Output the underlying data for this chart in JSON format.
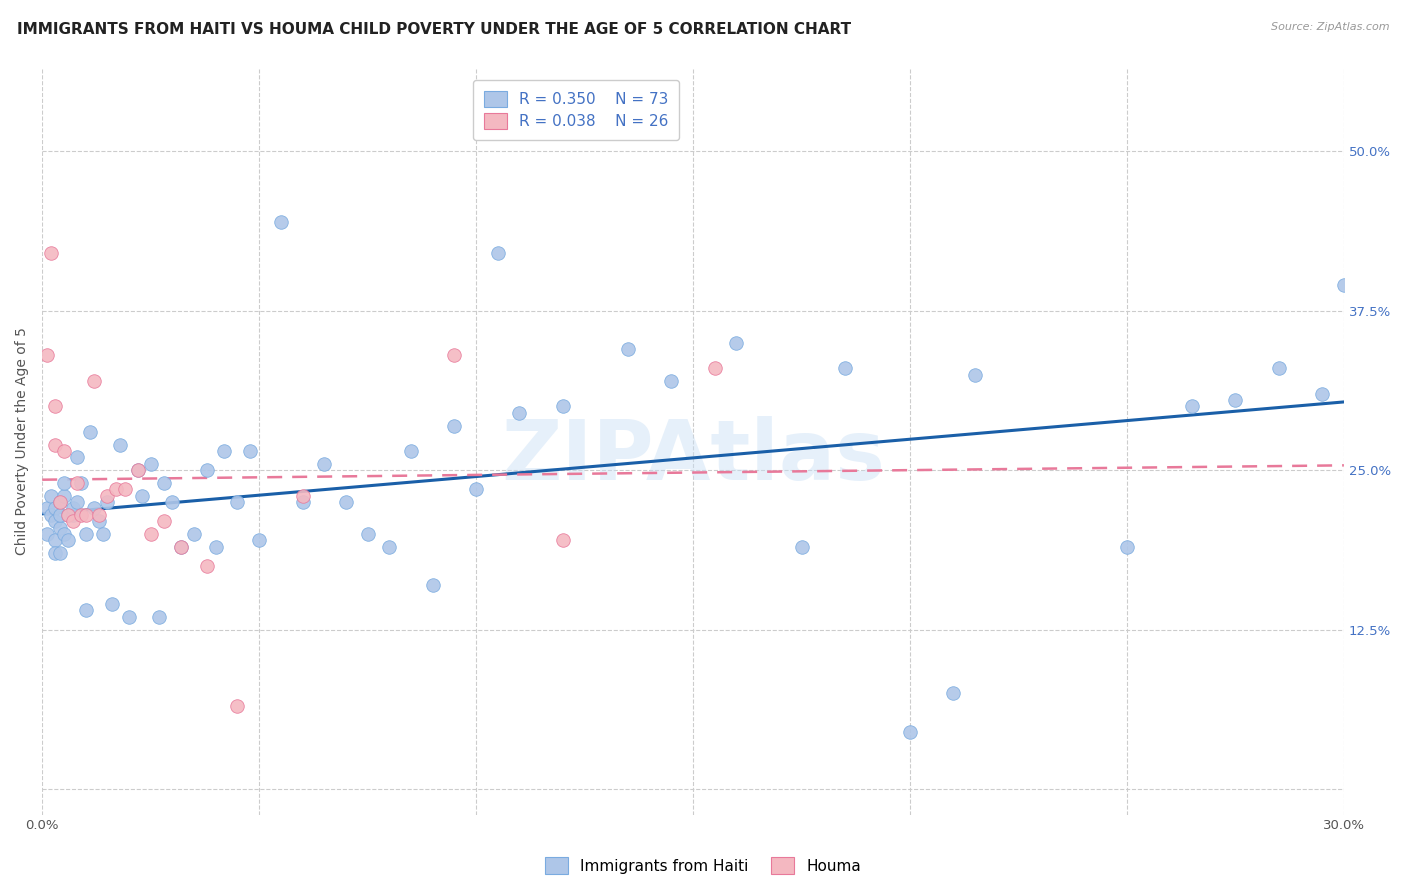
{
  "title": "IMMIGRANTS FROM HAITI VS HOUMA CHILD POVERTY UNDER THE AGE OF 5 CORRELATION CHART",
  "source": "Source: ZipAtlas.com",
  "ylabel": "Child Poverty Under the Age of 5",
  "x_ticks": [
    0.0,
    0.05,
    0.1,
    0.15,
    0.2,
    0.25,
    0.3
  ],
  "x_tick_labels": [
    "0.0%",
    "",
    "",
    "",
    "",
    "",
    "30.0%"
  ],
  "y_ticks": [
    0.0,
    0.125,
    0.25,
    0.375,
    0.5
  ],
  "y_tick_labels_right": [
    "",
    "12.5%",
    "25.0%",
    "37.5%",
    "50.0%"
  ],
  "xlim": [
    0.0,
    0.3
  ],
  "ylim": [
    -0.02,
    0.565
  ],
  "haiti_R": "0.350",
  "haiti_N": "73",
  "houma_R": "0.038",
  "houma_N": "26",
  "haiti_x": [
    0.001,
    0.001,
    0.002,
    0.002,
    0.003,
    0.003,
    0.003,
    0.003,
    0.004,
    0.004,
    0.004,
    0.004,
    0.005,
    0.005,
    0.005,
    0.006,
    0.006,
    0.007,
    0.007,
    0.008,
    0.008,
    0.009,
    0.01,
    0.01,
    0.011,
    0.012,
    0.013,
    0.014,
    0.015,
    0.016,
    0.018,
    0.02,
    0.022,
    0.023,
    0.025,
    0.027,
    0.028,
    0.03,
    0.032,
    0.035,
    0.038,
    0.04,
    0.042,
    0.045,
    0.048,
    0.05,
    0.055,
    0.06,
    0.065,
    0.07,
    0.075,
    0.08,
    0.085,
    0.09,
    0.095,
    0.1,
    0.105,
    0.11,
    0.12,
    0.135,
    0.145,
    0.16,
    0.175,
    0.185,
    0.2,
    0.21,
    0.215,
    0.25,
    0.265,
    0.275,
    0.285,
    0.295,
    0.3
  ],
  "haiti_y": [
    0.2,
    0.22,
    0.23,
    0.215,
    0.22,
    0.21,
    0.195,
    0.185,
    0.225,
    0.205,
    0.215,
    0.185,
    0.2,
    0.23,
    0.24,
    0.195,
    0.215,
    0.215,
    0.22,
    0.26,
    0.225,
    0.24,
    0.14,
    0.2,
    0.28,
    0.22,
    0.21,
    0.2,
    0.225,
    0.145,
    0.27,
    0.135,
    0.25,
    0.23,
    0.255,
    0.135,
    0.24,
    0.225,
    0.19,
    0.2,
    0.25,
    0.19,
    0.265,
    0.225,
    0.265,
    0.195,
    0.445,
    0.225,
    0.255,
    0.225,
    0.2,
    0.19,
    0.265,
    0.16,
    0.285,
    0.235,
    0.42,
    0.295,
    0.3,
    0.345,
    0.32,
    0.35,
    0.19,
    0.33,
    0.045,
    0.075,
    0.325,
    0.19,
    0.3,
    0.305,
    0.33,
    0.31,
    0.395
  ],
  "houma_x": [
    0.001,
    0.002,
    0.003,
    0.003,
    0.004,
    0.005,
    0.006,
    0.007,
    0.008,
    0.009,
    0.01,
    0.012,
    0.013,
    0.015,
    0.017,
    0.019,
    0.022,
    0.025,
    0.028,
    0.032,
    0.038,
    0.045,
    0.06,
    0.095,
    0.12,
    0.155
  ],
  "houma_y": [
    0.34,
    0.42,
    0.27,
    0.3,
    0.225,
    0.265,
    0.215,
    0.21,
    0.24,
    0.215,
    0.215,
    0.32,
    0.215,
    0.23,
    0.235,
    0.235,
    0.25,
    0.2,
    0.21,
    0.19,
    0.175,
    0.065,
    0.23,
    0.34,
    0.195,
    0.33
  ],
  "haiti_line_color": "#1a5fa8",
  "houma_line_color": "#e8799a",
  "haiti_scatter_color": "#aec6e8",
  "houma_scatter_color": "#f4b8c1",
  "haiti_edge_color": "#7aabe0",
  "houma_edge_color": "#e8799a",
  "background_color": "#ffffff",
  "grid_color": "#cccccc",
  "watermark_text": "ZIPAtlas",
  "watermark_color": "#c8dff5",
  "title_fontsize": 11,
  "axis_label_fontsize": 10,
  "tick_fontsize": 9.5,
  "legend_fontsize": 11
}
